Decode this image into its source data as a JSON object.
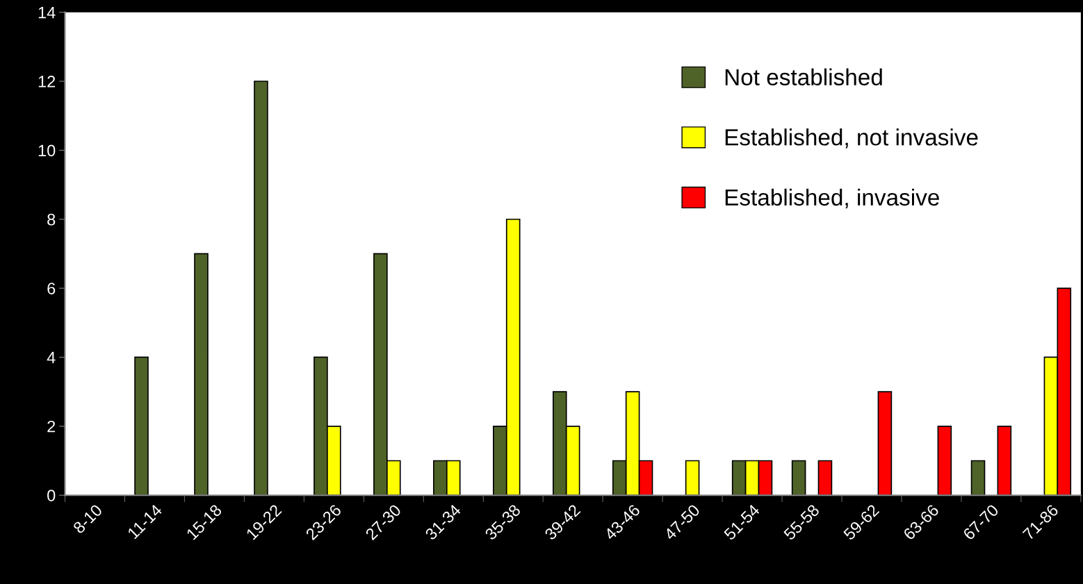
{
  "chart_data": {
    "type": "bar",
    "categories": [
      "8-10",
      "11-14",
      "15-18",
      "19-22",
      "23-26",
      "27-30",
      "31-34",
      "35-38",
      "39-42",
      "43-46",
      "47-50",
      "51-54",
      "55-58",
      "59-62",
      "63-66",
      "67-70",
      "71-86"
    ],
    "series": [
      {
        "name": "Not established",
        "color": "#4f6228",
        "values": [
          0,
          4,
          7,
          12,
          4,
          7,
          1,
          2,
          3,
          1,
          0,
          1,
          1,
          0,
          0,
          1,
          0
        ]
      },
      {
        "name": "Established, not invasive",
        "color": "#ffff00",
        "values": [
          0,
          0,
          0,
          0,
          2,
          1,
          1,
          8,
          2,
          3,
          1,
          1,
          0,
          0,
          0,
          0,
          4
        ]
      },
      {
        "name": "Established, invasive",
        "color": "#ff0000",
        "values": [
          0,
          0,
          0,
          0,
          0,
          0,
          0,
          0,
          0,
          1,
          0,
          1,
          1,
          3,
          2,
          2,
          6
        ]
      }
    ],
    "ylim": [
      0,
      14
    ],
    "yticks": [
      0,
      2,
      4,
      6,
      8,
      10,
      12,
      14
    ],
    "grid": false,
    "legend": "top right"
  }
}
